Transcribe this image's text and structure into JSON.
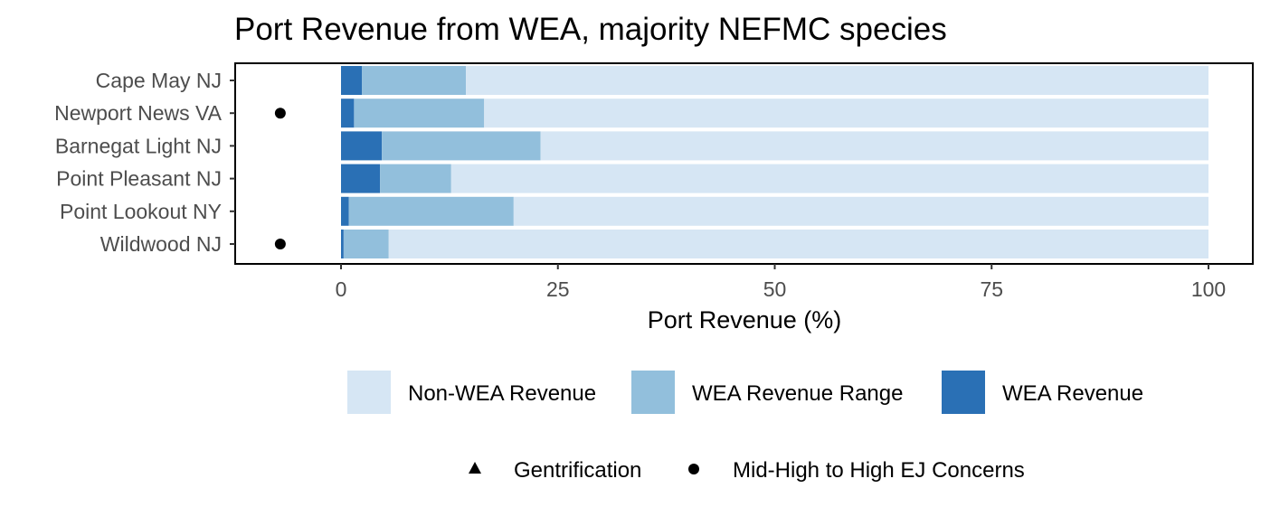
{
  "chart_data": {
    "type": "bar",
    "orientation": "horizontal",
    "stacked": true,
    "title": "Port Revenue from WEA, majority NEFMC species",
    "xlabel": "Port Revenue (%)",
    "ylabel": "",
    "xlim": [
      -12,
      105
    ],
    "xticks": [
      0,
      25,
      50,
      75,
      100
    ],
    "grid": false,
    "categories": [
      "Cape May NJ",
      "Newport News VA",
      "Barnegat Light NJ",
      "Point Pleasant NJ",
      "Point Lookout NY",
      "Wildwood NJ"
    ],
    "series": [
      {
        "name": "WEA Revenue",
        "color": "#2a70b5",
        "values": [
          2.4,
          1.5,
          4.7,
          4.5,
          0.9,
          0.3
        ]
      },
      {
        "name": "WEA Revenue Range",
        "color": "#92bfdc",
        "values": [
          12.0,
          15.0,
          18.3,
          8.2,
          19.0,
          5.2
        ]
      },
      {
        "name": "Non-WEA Revenue",
        "color": "#d6e6f4",
        "values": [
          85.6,
          83.5,
          77.0,
          87.3,
          80.1,
          94.5
        ]
      }
    ],
    "fill_legend": [
      "Non-WEA Revenue",
      "WEA Revenue Range",
      "WEA Revenue"
    ],
    "marker_legend": [
      {
        "label": "Gentrification",
        "shape": "triangle"
      },
      {
        "label": "Mid-High to High EJ Concerns",
        "shape": "circle"
      }
    ],
    "markers": [
      {
        "category": "Newport News VA",
        "x": -7,
        "shape": "circle"
      },
      {
        "category": "Wildwood NJ",
        "x": -7,
        "shape": "circle"
      }
    ],
    "legend_position": "bottom"
  }
}
